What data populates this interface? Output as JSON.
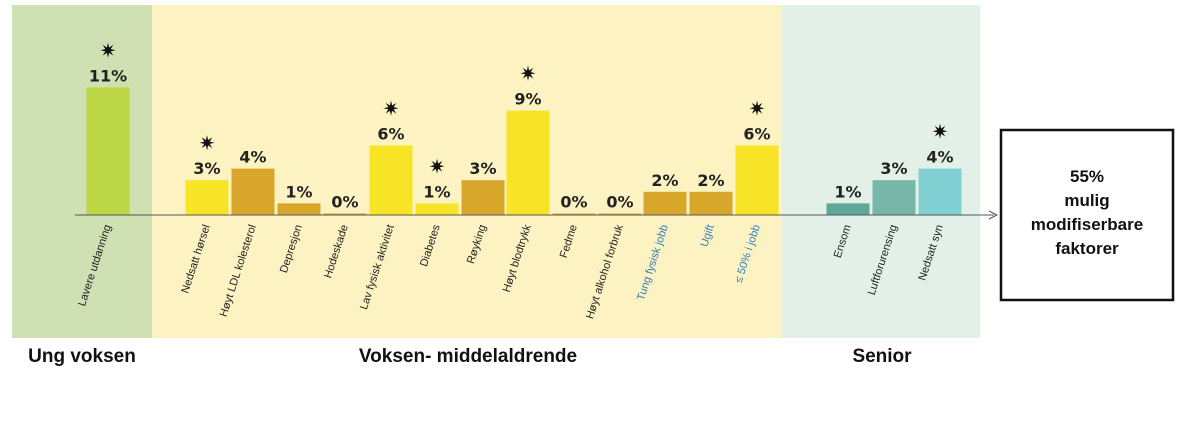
{
  "chart_data": {
    "type": "bar",
    "unit": "%",
    "star_symbol": "✷",
    "groups": [
      {
        "name": "Ung voksen",
        "band_color": "#cfe0b3"
      },
      {
        "name": "Voksen- middelaldrende",
        "band_color": "#fdf2c2"
      },
      {
        "name": "Senior",
        "band_color": "#e3f0e7"
      }
    ],
    "bars": [
      {
        "label": "Lavere utdanning",
        "value": 11,
        "value_label": "11%",
        "group": 0,
        "color": "#bcd645",
        "label_color": "#222222",
        "star": true
      },
      {
        "label": "Nedsatt hørsel",
        "value": 3,
        "value_label": "3%",
        "group": 1,
        "color": "#f8e426",
        "label_color": "#222222",
        "star": true
      },
      {
        "label": "Høyt LDL kolesterol",
        "value": 4,
        "value_label": "4%",
        "group": 1,
        "color": "#d8a62a",
        "label_color": "#222222",
        "star": false
      },
      {
        "label": "Depresjon",
        "value": 1,
        "value_label": "1%",
        "group": 1,
        "color": "#d8a62a",
        "label_color": "#222222",
        "star": false
      },
      {
        "label": "Hodeskade",
        "value": 0,
        "value_label": "0%",
        "group": 1,
        "color": "#d8a62a",
        "label_color": "#222222",
        "star": false
      },
      {
        "label": "Lav fysisk aktivitet",
        "value": 6,
        "value_label": "6%",
        "group": 1,
        "color": "#f8e426",
        "label_color": "#222222",
        "star": true
      },
      {
        "label": "Diabetes",
        "value": 1,
        "value_label": "1%",
        "group": 1,
        "color": "#f8e426",
        "label_color": "#222222",
        "star": true
      },
      {
        "label": "Røyking",
        "value": 3,
        "value_label": "3%",
        "group": 1,
        "color": "#d8a62a",
        "label_color": "#222222",
        "star": false
      },
      {
        "label": "Høyt blodtrykk",
        "value": 9,
        "value_label": "9%",
        "group": 1,
        "color": "#f8e426",
        "label_color": "#222222",
        "star": true
      },
      {
        "label": "Fedme",
        "value": 0,
        "value_label": "0%",
        "group": 1,
        "color": "#d8a62a",
        "label_color": "#222222",
        "star": false
      },
      {
        "label": "Høyt alkohol forbruk",
        "value": 0,
        "value_label": "0%",
        "group": 1,
        "color": "#d8a62a",
        "label_color": "#222222",
        "star": false
      },
      {
        "label": "Tung fysisk jobb",
        "value": 2,
        "value_label": "2%",
        "group": 1,
        "color": "#d8a62a",
        "label_color": "#2f7fc0",
        "star": false
      },
      {
        "label": "Ugift",
        "value": 2,
        "value_label": "2%",
        "group": 1,
        "color": "#d8a62a",
        "label_color": "#2f7fc0",
        "star": false
      },
      {
        "label": "≤ 50% i jobb",
        "value": 6,
        "value_label": "6%",
        "group": 1,
        "color": "#f8e426",
        "label_color": "#2f7fc0",
        "star": true
      },
      {
        "label": "Ensom",
        "value": 1,
        "value_label": "1%",
        "group": 2,
        "color": "#5fa89a",
        "label_color": "#222222",
        "star": false
      },
      {
        "label": "Luftforurensing",
        "value": 3,
        "value_label": "3%",
        "group": 2,
        "color": "#76b7a9",
        "label_color": "#222222",
        "star": false
      },
      {
        "label": "Nedsatt syn",
        "value": 4,
        "value_label": "4%",
        "group": 2,
        "color": "#82cfd4",
        "label_color": "#222222",
        "star": true
      }
    ],
    "ylim": [
      0,
      11
    ],
    "grid": false,
    "legend": "none"
  },
  "summary": {
    "lines": [
      "55%",
      "mulig",
      "modifiserbare",
      "faktorer"
    ]
  }
}
